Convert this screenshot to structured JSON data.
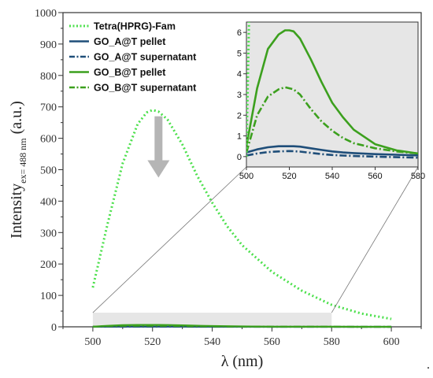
{
  "chart_data": [
    {
      "id": "main",
      "type": "line",
      "xlabel": "λ (nm)",
      "ylabel_main": "Intensity",
      "ylabel_sub": "ex= 488 nm",
      "ylabel_unit": "(a.u.)",
      "xlim": [
        490,
        610
      ],
      "ylim": [
        0,
        1000
      ],
      "xticks": [
        500,
        520,
        540,
        560,
        580,
        600
      ],
      "yticks": [
        0,
        100,
        200,
        300,
        400,
        500,
        600,
        700,
        800,
        900,
        1000
      ],
      "grid": false,
      "legend_position": "top-left",
      "zoom_region": {
        "x": [
          500,
          580
        ],
        "y": [
          0,
          45
        ]
      },
      "annotation_arrow": {
        "x": 522,
        "y_from": 670,
        "y_to": 475
      },
      "x": [
        500,
        505,
        510,
        515,
        518,
        520,
        522,
        525,
        530,
        535,
        540,
        545,
        550,
        560,
        570,
        580,
        590,
        600
      ],
      "series": [
        {
          "name": "Tetra(HPRG)-Fam",
          "color": "#4ce04c",
          "style": "dotted",
          "values": [
            125,
            330,
            520,
            645,
            682,
            690,
            685,
            660,
            580,
            480,
            395,
            320,
            260,
            175,
            115,
            70,
            42,
            25
          ]
        },
        {
          "name": "GO_A@T pellet",
          "color": "#1f4e79",
          "style": "solid",
          "values": [
            0.2,
            0.35,
            0.45,
            0.5,
            0.5,
            0.5,
            0.5,
            0.48,
            0.4,
            0.32,
            0.25,
            0.2,
            0.17,
            0.12,
            0.09,
            0.06,
            0.05,
            0.04
          ]
        },
        {
          "name": "GO_A@T supernatant",
          "color": "#1f4e79",
          "style": "dashdot",
          "values": [
            0.05,
            0.15,
            0.22,
            0.25,
            0.26,
            0.27,
            0.26,
            0.24,
            0.18,
            0.12,
            0.08,
            0.05,
            0.03,
            0.0,
            -0.03,
            -0.05,
            -0.06,
            -0.07
          ]
        },
        {
          "name": "GO_B@T pellet",
          "color": "#3ca01e",
          "style": "solid",
          "values": [
            0.5,
            3.3,
            5.2,
            5.9,
            6.1,
            6.1,
            6.05,
            5.7,
            4.7,
            3.6,
            2.6,
            1.9,
            1.3,
            0.6,
            0.3,
            0.15,
            0.1,
            0.08
          ]
        },
        {
          "name": "GO_B@T supernatant",
          "color": "#3ca01e",
          "style": "dashdot",
          "values": [
            0.2,
            2.0,
            2.9,
            3.25,
            3.35,
            3.3,
            3.25,
            3.0,
            2.3,
            1.7,
            1.25,
            0.9,
            0.65,
            0.4,
            0.25,
            0.15,
            0.1,
            0.08
          ]
        }
      ]
    },
    {
      "id": "inset",
      "type": "line",
      "xlim": [
        500,
        580
      ],
      "ylim": [
        -0.5,
        6.5
      ],
      "xticks": [
        500,
        520,
        540,
        560,
        580
      ],
      "yticks": [
        0,
        1,
        2,
        3,
        4,
        5,
        6
      ],
      "background": "#e6e6e6",
      "grid": false,
      "series_ref": "main"
    }
  ],
  "footer": {
    "dot": "."
  }
}
